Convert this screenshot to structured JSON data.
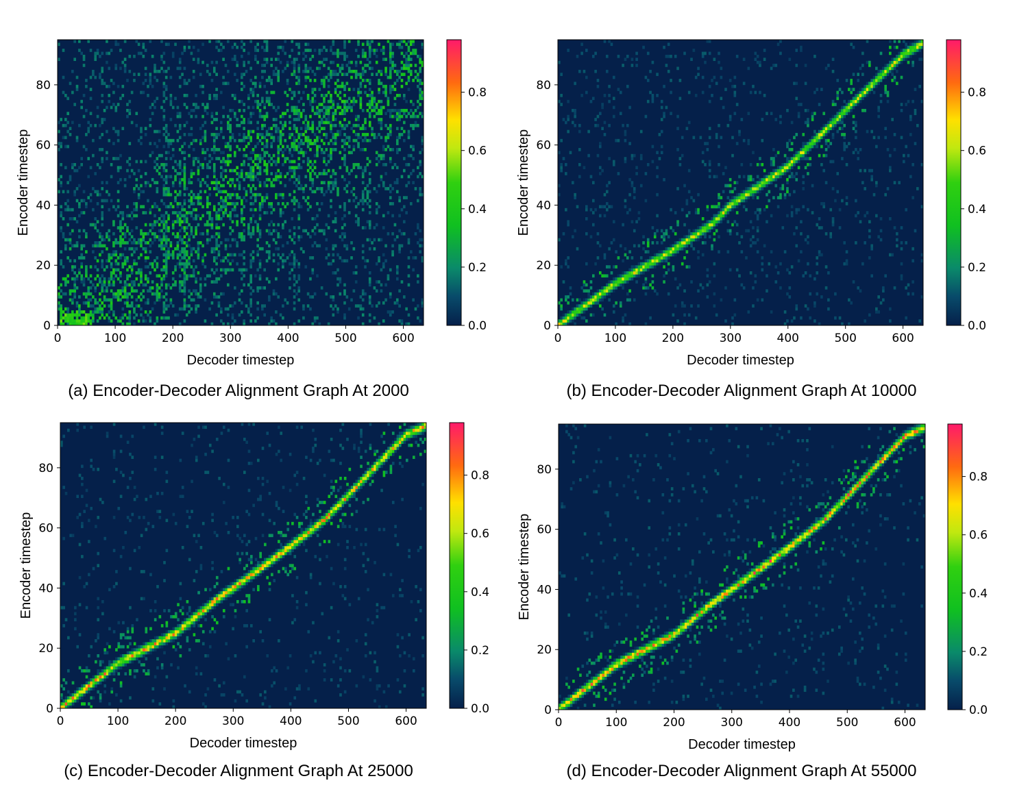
{
  "chart_data": [
    {
      "type": "heatmap",
      "caption": "(a) Encoder-Decoder Alignment Graph At 2000",
      "xlabel": "Decoder timestep",
      "ylabel": "Encoder timestep",
      "xlim": [
        0,
        635
      ],
      "ylim": [
        0,
        95
      ],
      "xticks": [
        "0",
        "100",
        "200",
        "300",
        "400",
        "500",
        "600"
      ],
      "yticks": [
        "0",
        "20",
        "40",
        "60",
        "80"
      ],
      "colorbar": {
        "range": [
          0,
          0.98
        ],
        "ticks": [
          "0.0",
          "0.2",
          "0.4",
          "0.6",
          "0.8"
        ]
      },
      "alignment": {
        "pattern": "diffuse",
        "diagonal_points": [
          [
            0,
            2
          ],
          [
            60,
            4
          ],
          [
            150,
            20
          ],
          [
            250,
            40
          ],
          [
            400,
            60
          ],
          [
            550,
            78
          ],
          [
            635,
            94
          ]
        ],
        "peak": 0.55,
        "noise": 0.28
      }
    },
    {
      "type": "heatmap",
      "caption": "(b) Encoder-Decoder Alignment Graph At 10000",
      "xlabel": "Decoder timestep",
      "ylabel": "Encoder timestep",
      "xlim": [
        0,
        635
      ],
      "ylim": [
        0,
        95
      ],
      "xticks": [
        "0",
        "100",
        "200",
        "300",
        "400",
        "500",
        "600"
      ],
      "yticks": [
        "0",
        "20",
        "40",
        "60",
        "80"
      ],
      "colorbar": {
        "range": [
          0,
          0.98
        ],
        "ticks": [
          "0.0",
          "0.2",
          "0.4",
          "0.6",
          "0.8"
        ]
      },
      "alignment": {
        "pattern": "diagonal",
        "diagonal_points": [
          [
            0,
            0
          ],
          [
            100,
            14
          ],
          [
            200,
            25
          ],
          [
            270,
            34
          ],
          [
            300,
            40
          ],
          [
            400,
            53
          ],
          [
            460,
            64
          ],
          [
            540,
            79
          ],
          [
            600,
            90
          ],
          [
            635,
            94
          ]
        ],
        "peak": 0.75,
        "noise": 0.06
      }
    },
    {
      "type": "heatmap",
      "caption": "(c) Encoder-Decoder Alignment Graph At 25000",
      "xlabel": "Decoder timestep",
      "ylabel": "Encoder timestep",
      "xlim": [
        0,
        635
      ],
      "ylim": [
        0,
        95
      ],
      "xticks": [
        "0",
        "100",
        "200",
        "300",
        "400",
        "500",
        "600"
      ],
      "yticks": [
        "0",
        "20",
        "40",
        "60",
        "80"
      ],
      "colorbar": {
        "range": [
          0,
          0.98
        ],
        "ticks": [
          "0.0",
          "0.2",
          "0.4",
          "0.6",
          "0.8"
        ]
      },
      "alignment": {
        "pattern": "diagonal",
        "diagonal_points": [
          [
            0,
            0
          ],
          [
            100,
            15
          ],
          [
            200,
            25
          ],
          [
            270,
            36
          ],
          [
            300,
            40
          ],
          [
            400,
            54
          ],
          [
            460,
            63
          ],
          [
            540,
            79
          ],
          [
            600,
            91
          ],
          [
            635,
            94
          ]
        ],
        "peak": 0.92,
        "noise": 0.04
      }
    },
    {
      "type": "heatmap",
      "caption": "(d) Encoder-Decoder Alignment Graph At 55000",
      "xlabel": "Decoder timestep",
      "ylabel": "Encoder timestep",
      "xlim": [
        0,
        635
      ],
      "ylim": [
        0,
        95
      ],
      "xticks": [
        "0",
        "100",
        "200",
        "300",
        "400",
        "500",
        "600"
      ],
      "yticks": [
        "0",
        "20",
        "40",
        "60",
        "80"
      ],
      "colorbar": {
        "range": [
          0,
          0.98
        ],
        "ticks": [
          "0.0",
          "0.2",
          "0.4",
          "0.6",
          "0.8"
        ]
      },
      "alignment": {
        "pattern": "diagonal",
        "diagonal_points": [
          [
            0,
            0
          ],
          [
            100,
            15
          ],
          [
            200,
            25
          ],
          [
            270,
            36
          ],
          [
            300,
            40
          ],
          [
            400,
            54
          ],
          [
            460,
            63
          ],
          [
            540,
            79
          ],
          [
            600,
            91
          ],
          [
            635,
            94
          ]
        ],
        "peak": 0.95,
        "noise": 0.04
      }
    }
  ],
  "colormap": {
    "stops": [
      [
        0.0,
        "#05204a"
      ],
      [
        0.1,
        "#084a6a"
      ],
      [
        0.2,
        "#0a8a6a"
      ],
      [
        0.35,
        "#10c020"
      ],
      [
        0.5,
        "#30d010"
      ],
      [
        0.62,
        "#c0e810"
      ],
      [
        0.72,
        "#ffe000"
      ],
      [
        0.85,
        "#ff6a10"
      ],
      [
        1.0,
        "#ff1a6a"
      ]
    ]
  }
}
